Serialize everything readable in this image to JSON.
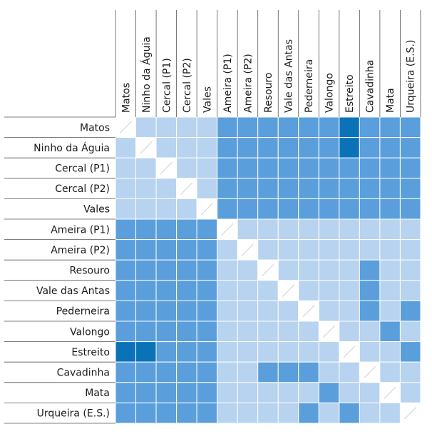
{
  "chart_data": {
    "type": "heatmap",
    "title": "",
    "categories": [
      "Matos",
      "Ninho da Águia",
      "Cercal (P1)",
      "Cercal (P2)",
      "Vales",
      "Ameira (P1)",
      "Ameira (P2)",
      "Resouro",
      "Vale das Antas",
      "Pederneira",
      "Valongo",
      "Estreito",
      "Cavadinha",
      "Mata",
      "Urqueira (E.S.)"
    ],
    "levels": [
      {
        "level": 0,
        "color": "#ffffff"
      },
      {
        "level": 1,
        "color": "#b7d3ef"
      },
      {
        "level": 2,
        "color": "#5a9fdc"
      },
      {
        "level": 3,
        "color": "#0a72b6"
      }
    ],
    "matrix": [
      [
        0,
        1,
        1,
        1,
        1,
        2,
        2,
        2,
        2,
        2,
        2,
        3,
        2,
        2,
        2
      ],
      [
        1,
        0,
        1,
        1,
        1,
        2,
        2,
        2,
        2,
        2,
        2,
        3,
        2,
        2,
        2
      ],
      [
        1,
        1,
        0,
        1,
        1,
        2,
        2,
        2,
        2,
        2,
        2,
        2,
        2,
        2,
        2
      ],
      [
        1,
        1,
        1,
        0,
        1,
        2,
        2,
        2,
        2,
        2,
        2,
        2,
        2,
        2,
        2
      ],
      [
        1,
        1,
        1,
        1,
        0,
        2,
        2,
        2,
        2,
        2,
        2,
        2,
        2,
        2,
        2
      ],
      [
        2,
        2,
        2,
        2,
        2,
        0,
        1,
        1,
        1,
        1,
        1,
        1,
        1,
        1,
        1
      ],
      [
        2,
        2,
        2,
        2,
        2,
        1,
        0,
        1,
        1,
        1,
        1,
        1,
        1,
        1,
        1
      ],
      [
        2,
        2,
        2,
        2,
        2,
        1,
        1,
        0,
        1,
        1,
        1,
        1,
        2,
        1,
        1
      ],
      [
        2,
        2,
        2,
        2,
        2,
        1,
        1,
        1,
        0,
        1,
        1,
        1,
        2,
        1,
        1
      ],
      [
        2,
        2,
        2,
        2,
        2,
        1,
        1,
        1,
        1,
        0,
        1,
        1,
        2,
        1,
        2
      ],
      [
        2,
        2,
        2,
        2,
        2,
        1,
        1,
        1,
        1,
        1,
        0,
        1,
        1,
        2,
        1
      ],
      [
        3,
        3,
        2,
        2,
        2,
        1,
        1,
        1,
        1,
        1,
        1,
        0,
        1,
        1,
        2
      ],
      [
        2,
        2,
        2,
        2,
        2,
        1,
        1,
        2,
        2,
        2,
        1,
        1,
        0,
        1,
        1
      ],
      [
        2,
        2,
        2,
        2,
        2,
        1,
        1,
        1,
        1,
        1,
        2,
        1,
        1,
        0,
        1
      ],
      [
        2,
        2,
        2,
        2,
        2,
        1,
        1,
        1,
        1,
        2,
        1,
        2,
        1,
        1,
        0
      ]
    ]
  }
}
